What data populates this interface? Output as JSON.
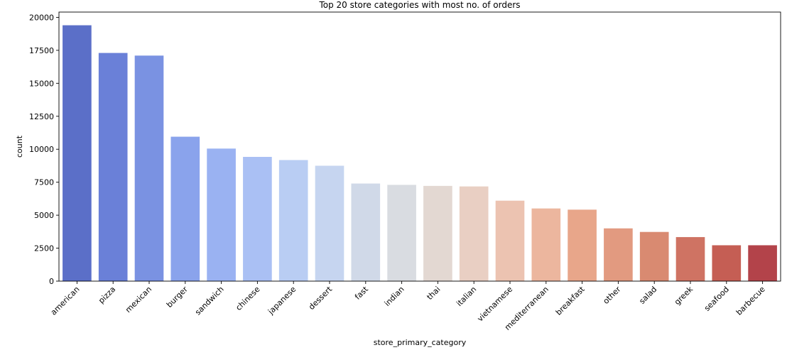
{
  "chart_data": {
    "type": "bar",
    "title": "Top 20 store categories with most no. of orders",
    "xlabel": "store_primary_category",
    "ylabel": "count",
    "ylim": [
      0,
      20400
    ],
    "yticks": [
      0,
      2500,
      5000,
      7500,
      10000,
      12500,
      15000,
      17500,
      20000
    ],
    "grid": false,
    "palette": "coolwarm",
    "categories": [
      "american",
      "pizza",
      "mexican",
      "burger",
      "sandwich",
      "chinese",
      "japanese",
      "dessert",
      "fast",
      "indian",
      "thai",
      "italian",
      "vietnamese",
      "mediterranean",
      "breakfast",
      "other",
      "salad",
      "greek",
      "seafood",
      "barbecue"
    ],
    "values": [
      19400,
      17300,
      17100,
      10950,
      10050,
      9420,
      9180,
      8750,
      7400,
      7300,
      7220,
      7180,
      6100,
      5510,
      5420,
      4000,
      3730,
      3340,
      2720,
      2720
    ],
    "colors": [
      "#5b6fc8",
      "#6a80d8",
      "#7a92e2",
      "#8aa3ec",
      "#9ab2f2",
      "#aac0f4",
      "#b9cdf3",
      "#c6d5f0",
      "#d0d9e8",
      "#d9dce1",
      "#e3d8d2",
      "#e9cfc3",
      "#ecc3b1",
      "#ecb69e",
      "#e8a68a",
      "#e29a80",
      "#d98a71",
      "#cf7363",
      "#c55e54",
      "#b3434a"
    ]
  }
}
